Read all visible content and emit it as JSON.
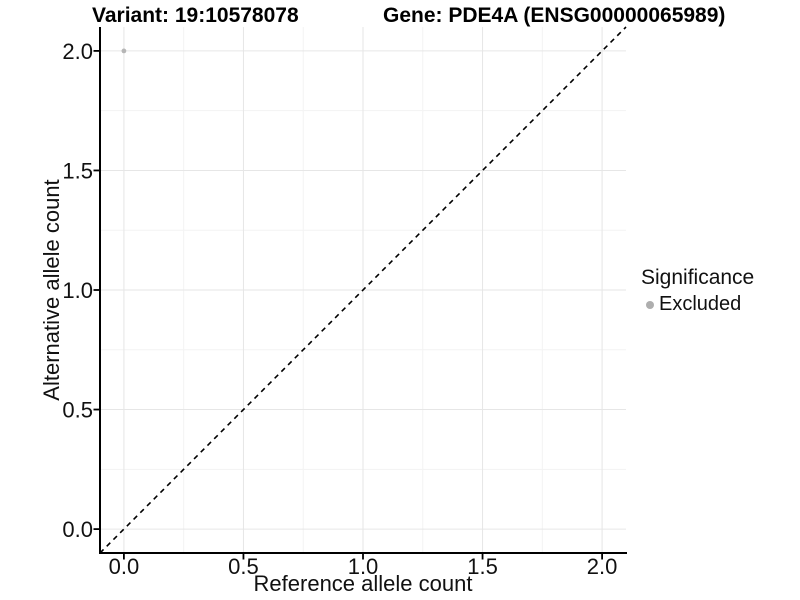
{
  "chart_data": {
    "type": "scatter",
    "titles": {
      "left": "Variant: 19:10578078",
      "right": "Gene: PDE4A (ENSG00000065989)"
    },
    "xlabel": "Reference allele count",
    "ylabel": "Alternative allele count",
    "xlim": [
      -0.1,
      2.1
    ],
    "ylim": [
      -0.1,
      2.1
    ],
    "xticks": [
      0.0,
      0.5,
      1.0,
      1.5,
      2.0
    ],
    "yticks": [
      0.0,
      0.5,
      1.0,
      1.5,
      2.0
    ],
    "minor_xticks": [
      0.25,
      0.75,
      1.25,
      1.75
    ],
    "minor_yticks": [
      0.25,
      0.75,
      1.25,
      1.75
    ],
    "tick_decimals": 1,
    "grid": true,
    "series": [
      {
        "name": "Excluded",
        "color": "#b6b6b6",
        "point_radius": 2.4,
        "points": [
          {
            "x": 0.0,
            "y": 2.0
          }
        ]
      }
    ],
    "reference_line": {
      "kind": "identity",
      "style": "dashed",
      "color": "#000000"
    },
    "legend": {
      "position": "right",
      "title": "Significance",
      "entries": [
        {
          "label": "Excluded",
          "color": "#aeaeae"
        }
      ]
    },
    "colors": {
      "background": "#ffffff",
      "axis_line": "#000000",
      "tick_mark": "#000000",
      "major_grid": "#e6e6e6",
      "minor_grid": "#f3f3f3",
      "text": "#111111"
    }
  }
}
